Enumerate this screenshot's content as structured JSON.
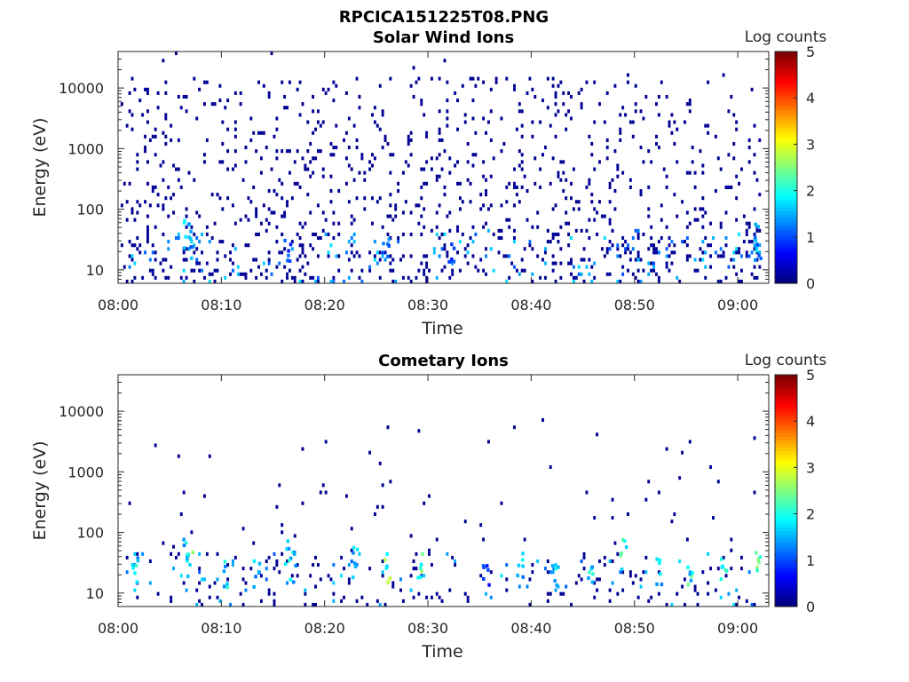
{
  "figure_title": "RPCICA151225T08.PNG",
  "chart_data": [
    {
      "type": "heatmap",
      "title": "Solar Wind Ions",
      "xlabel": "Time",
      "ylabel": "Energy (eV)",
      "x_tick_labels": [
        "08:00",
        "08:10",
        "08:20",
        "08:30",
        "08:40",
        "08:50",
        "09:00"
      ],
      "x_tick_minutes": [
        0,
        10,
        20,
        30,
        40,
        50,
        60
      ],
      "xlim_minutes": [
        0,
        63
      ],
      "y_scale": "log",
      "ylim": [
        6,
        40000
      ],
      "y_ticks": [
        10,
        100,
        1000,
        10000
      ],
      "y_tick_labels": [
        "10",
        "100",
        "1000",
        "10000"
      ],
      "colorbar": {
        "label": "Log counts",
        "range": [
          0,
          5
        ],
        "ticks": [
          "0",
          "1",
          "2",
          "3",
          "4",
          "5"
        ],
        "colormap": "jet"
      },
      "description": "Sparse single-count pixels scattered across all energies; denser columns with 1-2 log counts below ~50 eV.",
      "clusters": [
        {
          "t": 6.5,
          "e": 35,
          "v": 1.8
        },
        {
          "t": 6.8,
          "e": 25,
          "v": 1.5
        },
        {
          "t": 16.3,
          "e": 20,
          "v": 1.2
        },
        {
          "t": 25.8,
          "e": 20,
          "v": 1.5
        },
        {
          "t": 32.1,
          "e": 15,
          "v": 1.1
        },
        {
          "t": 61.8,
          "e": 30,
          "v": 1.7
        },
        {
          "t": 61.8,
          "e": 20,
          "v": 1.3
        }
      ]
    },
    {
      "type": "heatmap",
      "title": "Cometary Ions",
      "xlabel": "Time",
      "ylabel": "Energy (eV)",
      "x_tick_labels": [
        "08:00",
        "08:10",
        "08:20",
        "08:30",
        "08:40",
        "08:50",
        "09:00"
      ],
      "x_tick_minutes": [
        0,
        10,
        20,
        30,
        40,
        50,
        60
      ],
      "xlim_minutes": [
        0,
        63
      ],
      "y_scale": "log",
      "ylim": [
        6,
        40000
      ],
      "y_ticks": [
        10,
        100,
        1000,
        10000
      ],
      "y_tick_labels": [
        "10",
        "100",
        "1000",
        "10000"
      ],
      "colorbar": {
        "label": "Log counts",
        "range": [
          0,
          5
        ],
        "ticks": [
          "0",
          "1",
          "2",
          "3",
          "4",
          "5"
        ],
        "colormap": "jet"
      },
      "description": "Bursts of cometary ions at 10-50 eV with up to ~2.5 log counts, recurring roughly every 3-5 minutes.",
      "clusters": [
        {
          "t": 1.6,
          "e": 20,
          "v": 2.0
        },
        {
          "t": 6.4,
          "e": 60,
          "v": 2.0
        },
        {
          "t": 6.8,
          "e": 30,
          "v": 2.4
        },
        {
          "t": 10.3,
          "e": 20,
          "v": 2.0
        },
        {
          "t": 13.3,
          "e": 20,
          "v": 1.8
        },
        {
          "t": 16.3,
          "e": 50,
          "v": 2.0
        },
        {
          "t": 16.8,
          "e": 25,
          "v": 2.0
        },
        {
          "t": 22.8,
          "e": 30,
          "v": 1.8
        },
        {
          "t": 26.0,
          "e": 25,
          "v": 2.6
        },
        {
          "t": 29.2,
          "e": 25,
          "v": 2.4
        },
        {
          "t": 35.5,
          "e": 15,
          "v": 1.0
        },
        {
          "t": 38.8,
          "e": 30,
          "v": 1.8
        },
        {
          "t": 42.2,
          "e": 20,
          "v": 1.8
        },
        {
          "t": 45.7,
          "e": 25,
          "v": 2.0
        },
        {
          "t": 48.8,
          "e": 40,
          "v": 2.2
        },
        {
          "t": 52.2,
          "e": 20,
          "v": 2.0
        },
        {
          "t": 55.2,
          "e": 20,
          "v": 2.2
        },
        {
          "t": 58.5,
          "e": 25,
          "v": 2.0
        },
        {
          "t": 61.8,
          "e": 30,
          "v": 2.6
        }
      ]
    }
  ]
}
